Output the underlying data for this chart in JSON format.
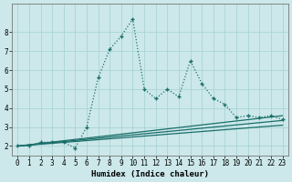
{
  "title": "",
  "xlabel": "Humidex (Indice chaleur)",
  "bg_color": "#cce8ea",
  "grid_color": "#aad4d6",
  "line_color": "#1a6e6a",
  "xlim": [
    -0.5,
    23.5
  ],
  "ylim": [
    1.5,
    9.5
  ],
  "xticks": [
    0,
    1,
    2,
    3,
    4,
    5,
    6,
    7,
    8,
    9,
    10,
    11,
    12,
    13,
    14,
    15,
    16,
    17,
    18,
    19,
    20,
    21,
    22,
    23
  ],
  "yticks": [
    2,
    3,
    4,
    5,
    6,
    7,
    8
  ],
  "main_x": [
    0,
    1,
    2,
    3,
    4,
    5,
    6,
    7,
    8,
    9,
    10,
    11,
    12,
    13,
    14,
    15,
    16,
    17,
    18,
    19,
    20,
    21,
    22,
    23
  ],
  "main_y": [
    2.0,
    2.0,
    2.2,
    2.2,
    2.2,
    1.9,
    3.0,
    5.6,
    7.1,
    7.8,
    8.7,
    5.0,
    4.5,
    5.0,
    4.6,
    6.5,
    5.3,
    4.5,
    4.2,
    3.5,
    3.6,
    3.5,
    3.6,
    3.4
  ],
  "trend1_x": [
    0,
    23
  ],
  "trend1_y": [
    2.0,
    3.6
  ],
  "trend2_x": [
    0,
    23
  ],
  "trend2_y": [
    2.0,
    3.35
  ],
  "trend3_x": [
    0,
    23
  ],
  "trend3_y": [
    2.0,
    3.1
  ]
}
